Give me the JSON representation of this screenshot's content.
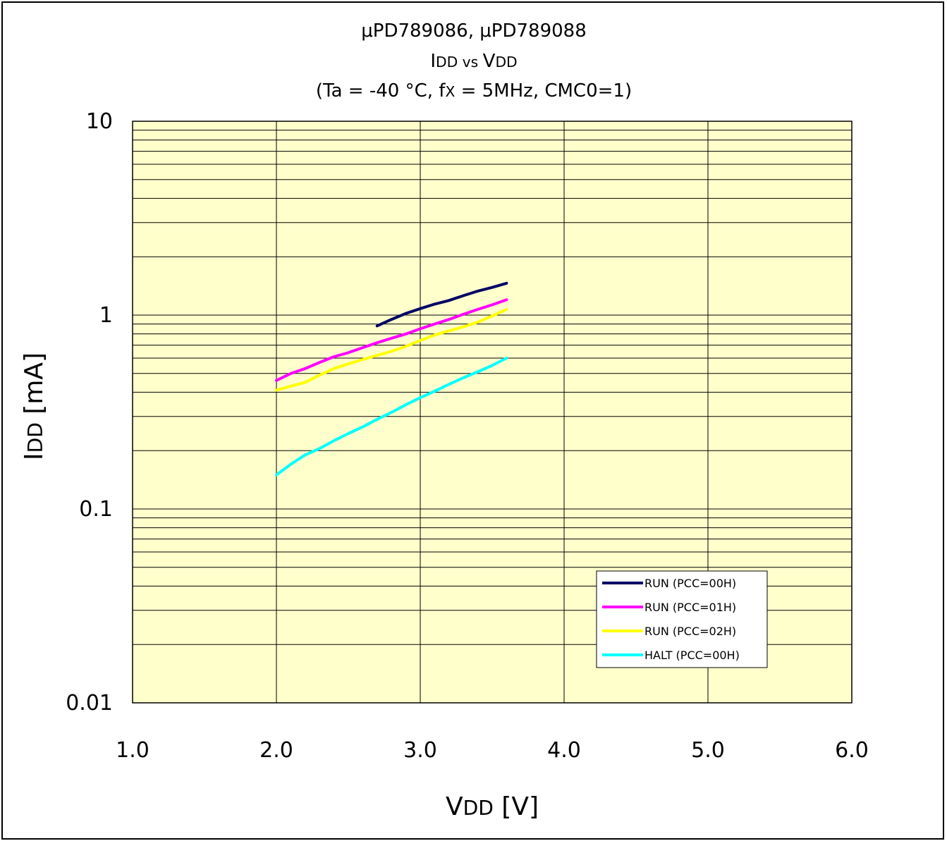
{
  "chart_data": {
    "type": "line",
    "title_lines": [
      "μPD789086, μPD789088",
      {
        "parts": [
          {
            "text": "I",
            "small": false
          },
          {
            "text": "DD",
            "small": true
          },
          {
            "text": " vs ",
            "small": true
          },
          {
            "text": "V",
            "small": false
          },
          {
            "text": "DD",
            "small": true
          }
        ]
      },
      {
        "parts": [
          {
            "text": "(Ta = -40 °C, f",
            "small": false
          },
          {
            "text": "X",
            "small": true
          },
          {
            "text": " = 5MHz, CMC0=1)",
            "small": false
          }
        ]
      }
    ],
    "xlabel": {
      "parts": [
        {
          "text": "V",
          "small": false
        },
        {
          "text": "DD",
          "small": true
        },
        {
          "text": " [V]",
          "small": false
        }
      ]
    },
    "ylabel": {
      "parts": [
        {
          "text": "I",
          "small": false
        },
        {
          "text": "DD",
          "small": true
        },
        {
          "text": " [mA]",
          "small": false
        }
      ]
    },
    "xlim": [
      1.0,
      6.0
    ],
    "ylim": [
      0.01,
      10
    ],
    "yscale": "log",
    "x_ticks": [
      {
        "value": 1.0,
        "label": "1.0"
      },
      {
        "value": 2.0,
        "label": "2.0"
      },
      {
        "value": 3.0,
        "label": "3.0"
      },
      {
        "value": 4.0,
        "label": "4.0"
      },
      {
        "value": 5.0,
        "label": "5.0"
      },
      {
        "value": 6.0,
        "label": "6.0"
      }
    ],
    "y_ticks": [
      {
        "value": 0.01,
        "label": "0.01"
      },
      {
        "value": 0.1,
        "label": "0.1"
      },
      {
        "value": 1,
        "label": "1"
      },
      {
        "value": 10,
        "label": "10"
      }
    ],
    "grid": true,
    "plot_background": "#ffffcc",
    "legend_position": "bottom-right",
    "series": [
      {
        "name": "RUN (PCC=00H)",
        "color": "#000066",
        "x": [
          2.7,
          2.8,
          2.9,
          3.0,
          3.1,
          3.2,
          3.3,
          3.4,
          3.5,
          3.6
        ],
        "y": [
          0.88,
          0.95,
          1.02,
          1.08,
          1.14,
          1.19,
          1.26,
          1.33,
          1.39,
          1.46
        ]
      },
      {
        "name": "RUN (PCC=01H)",
        "color": "#ff00ff",
        "x": [
          2.0,
          2.1,
          2.2,
          2.3,
          2.4,
          2.5,
          2.6,
          2.7,
          2.8,
          2.9,
          3.0,
          3.1,
          3.2,
          3.3,
          3.4,
          3.5,
          3.6
        ],
        "y": [
          0.46,
          0.5,
          0.53,
          0.57,
          0.61,
          0.64,
          0.68,
          0.72,
          0.76,
          0.8,
          0.85,
          0.9,
          0.95,
          1.01,
          1.07,
          1.13,
          1.2
        ]
      },
      {
        "name": "RUN (PCC=02H)",
        "color": "#ffff00",
        "x": [
          2.0,
          2.1,
          2.2,
          2.3,
          2.4,
          2.5,
          2.6,
          2.7,
          2.8,
          2.9,
          3.0,
          3.1,
          3.2,
          3.3,
          3.4,
          3.5,
          3.6
        ],
        "y": [
          0.41,
          0.43,
          0.45,
          0.49,
          0.53,
          0.56,
          0.59,
          0.62,
          0.65,
          0.69,
          0.74,
          0.79,
          0.83,
          0.87,
          0.92,
          0.99,
          1.07
        ]
      },
      {
        "name": "HALT (PCC=00H)",
        "color": "#00ffff",
        "x": [
          2.0,
          2.1,
          2.2,
          2.3,
          2.4,
          2.5,
          2.6,
          2.7,
          2.8,
          2.9,
          3.0,
          3.1,
          3.2,
          3.3,
          3.4,
          3.5,
          3.6
        ],
        "y": [
          0.15,
          0.17,
          0.19,
          0.205,
          0.225,
          0.245,
          0.265,
          0.29,
          0.315,
          0.345,
          0.375,
          0.405,
          0.44,
          0.475,
          0.51,
          0.55,
          0.6
        ]
      }
    ]
  }
}
